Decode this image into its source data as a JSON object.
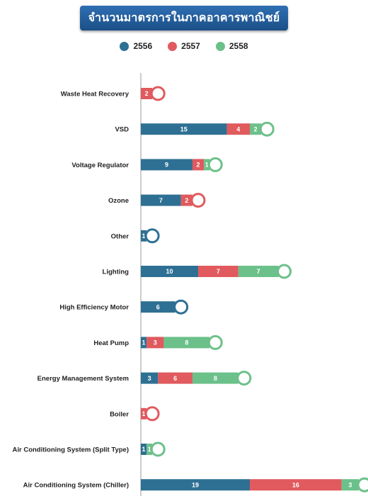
{
  "chart_data": {
    "type": "bar",
    "orientation": "horizontal",
    "stacked": true,
    "title": "จำนวนมาตรการในภาคอาคารพาณิชย์",
    "legend_position": "top",
    "categories": [
      "Waste Heat Recovery",
      "VSD",
      "Voltage Regulator",
      "Ozone",
      "Other",
      "Lighting",
      "High Efficiency Motor",
      "Heat Pump",
      "Energy Management System",
      "Boiler",
      "Air Conditioning System (Split Type)",
      "Air Conditioning System (Chiller)"
    ],
    "series": [
      {
        "name": "2556",
        "color": "#2e7093",
        "values": [
          0,
          15,
          9,
          7,
          1,
          10,
          6,
          1,
          3,
          0,
          1,
          19
        ]
      },
      {
        "name": "2557",
        "color": "#e05a5e",
        "values": [
          2,
          4,
          2,
          2,
          0,
          7,
          0,
          3,
          6,
          1,
          0,
          16
        ]
      },
      {
        "name": "2558",
        "color": "#6cc08a",
        "values": [
          0,
          2,
          1,
          0,
          0,
          7,
          0,
          8,
          8,
          0,
          1,
          3
        ]
      }
    ],
    "xlim": [
      0,
      38
    ],
    "grid": false
  }
}
